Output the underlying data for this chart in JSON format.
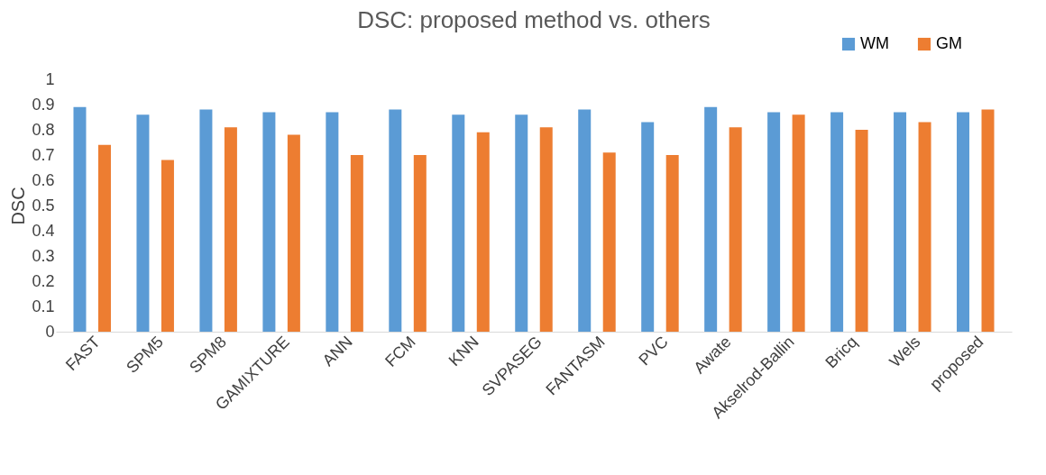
{
  "chart_data": {
    "type": "bar",
    "title": "DSC: proposed method vs. others",
    "ylabel": "DSC",
    "categories": [
      "FAST",
      "SPM5",
      "SPM8",
      "GAMIXTURE",
      "ANN",
      "FCM",
      "KNN",
      "SVPASEG",
      "FANTASM",
      "PVC",
      "Awate",
      "Akselrod-Ballin",
      "Bricq",
      "Wels",
      "proposed"
    ],
    "series": [
      {
        "name": "WM",
        "color": "#5b9bd5",
        "values": [
          0.89,
          0.86,
          0.88,
          0.87,
          0.87,
          0.88,
          0.86,
          0.86,
          0.88,
          0.83,
          0.89,
          0.87,
          0.87,
          0.87,
          0.87
        ]
      },
      {
        "name": "GM",
        "color": "#ed7d31",
        "values": [
          0.74,
          0.68,
          0.81,
          0.78,
          0.7,
          0.7,
          0.79,
          0.81,
          0.71,
          0.7,
          0.81,
          0.86,
          0.8,
          0.83,
          0.88
        ]
      }
    ],
    "ylim": [
      0,
      1
    ],
    "yticks": [
      0,
      0.1,
      0.2,
      0.3,
      0.4,
      0.5,
      0.6,
      0.7,
      0.8,
      0.9,
      1
    ],
    "grid": false,
    "legend": "top right"
  }
}
